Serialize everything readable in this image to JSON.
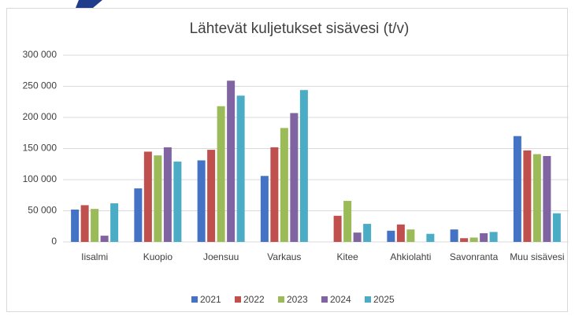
{
  "chart_data": {
    "type": "bar",
    "title": "Lähtevät kuljetukset sisävesi (t/v)",
    "categories": [
      "Iisalmi",
      "Kuopio",
      "Joensuu",
      "Varkaus",
      "Kitee",
      "Ahkiolahti",
      "Savonranta",
      "Muu sisävesi"
    ],
    "series": [
      {
        "name": "2021",
        "color": "#4472c4",
        "values": [
          52000,
          86000,
          131000,
          106000,
          0,
          18000,
          20000,
          170000
        ]
      },
      {
        "name": "2022",
        "color": "#c0504d",
        "values": [
          59000,
          145000,
          148000,
          152000,
          42000,
          28000,
          6000,
          147000
        ]
      },
      {
        "name": "2023",
        "color": "#9bbb59",
        "values": [
          53000,
          139000,
          218000,
          183000,
          66000,
          20000,
          7000,
          141000
        ]
      },
      {
        "name": "2024",
        "color": "#8064a2",
        "values": [
          10000,
          152000,
          259000,
          207000,
          15000,
          0,
          14000,
          138000
        ]
      },
      {
        "name": "2025",
        "color": "#4bacc6",
        "values": [
          62000,
          129000,
          235000,
          244000,
          29000,
          13000,
          16000,
          46000
        ]
      }
    ],
    "ylim": [
      0,
      300000
    ],
    "yticks": [
      0,
      {
        "value": 50000,
        "label": "50 000"
      },
      {
        "value": 100000,
        "label": "100 000"
      },
      {
        "value": 150000,
        "label": "150 000"
      },
      {
        "value": 200000,
        "label": "200 000"
      },
      {
        "value": 250000,
        "label": "250 000"
      },
      {
        "value": 300000,
        "label": "300 000"
      }
    ],
    "grid": true,
    "legend": "bottom"
  }
}
